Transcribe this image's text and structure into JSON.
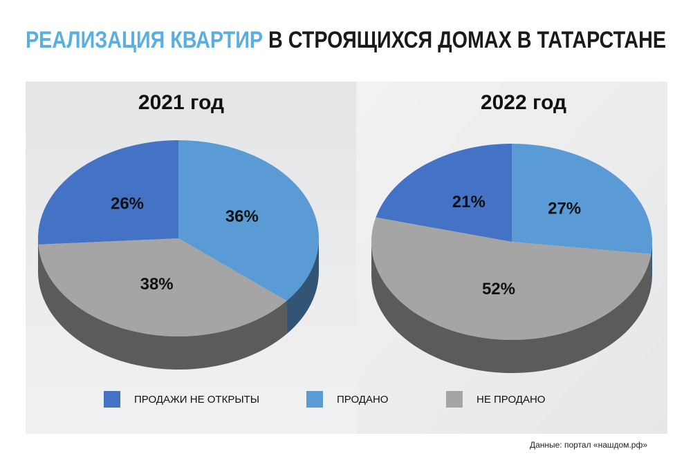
{
  "title_highlight": "РЕАЛИЗАЦИЯ КВАРТИР",
  "title": "В СТРОЯЩИХСЯ ДОМАХ В ТАТАРСТАНЕ",
  "source": "Данные: портал «нашдом.рф»",
  "chart_data": [
    {
      "type": "pie",
      "title": "2021 год",
      "categories": [
        "ПРОДАЖИ НЕ ОТКРЫТЫ",
        "ПРОДАНО",
        "НЕ ПРОДАНО"
      ],
      "values": [
        26,
        36,
        38
      ],
      "value_labels": [
        "26%",
        "36%",
        "38%"
      ],
      "colors": [
        "#4472c4",
        "#5b9bd5",
        "#a5a5a5"
      ]
    },
    {
      "type": "pie",
      "title": "2022 год",
      "categories": [
        "ПРОДАЖИ НЕ ОТКРЫТЫ",
        "ПРОДАНО",
        "НЕ ПРОДАНО"
      ],
      "values": [
        21,
        27,
        52
      ],
      "value_labels": [
        "21%",
        "27%",
        "52%"
      ],
      "colors": [
        "#4472c4",
        "#5b9bd5",
        "#a5a5a5"
      ]
    }
  ]
}
